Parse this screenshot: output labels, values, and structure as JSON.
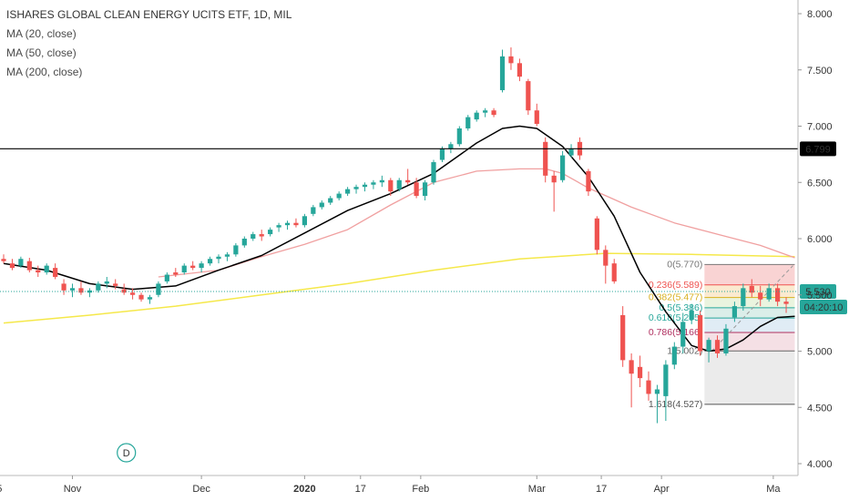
{
  "legend": {
    "title": "ISHARES GLOBAL CLEAN ENERGY UCITS ETF, 1D, MIL",
    "indicators": [
      "MA (20, close)",
      "MA (50, close)",
      "MA (200, close)"
    ]
  },
  "colors": {
    "up": "#26a69a",
    "down": "#ef5350",
    "ma20": "#000000",
    "ma50": "#f0a0a0",
    "ma200": "#f5e84a",
    "hline": "#000000",
    "last_price_line": "#26a69a",
    "last_price_badge": "#26a69a",
    "countdown_badge": "#26a69a",
    "hline_badge": "#000000",
    "dividend_marker": "#26a69a"
  },
  "chart_data": {
    "type": "candlestick",
    "y_axis": {
      "ylim": [
        3.95,
        8.05
      ],
      "ticks": [
        "8.000",
        "7.500",
        "7.000",
        "6.500",
        "6.000",
        "5.500",
        "5.000",
        "4.500",
        "4.000"
      ],
      "tick_values": [
        8.0,
        7.5,
        7.0,
        6.5,
        6.0,
        5.5,
        5.0,
        4.5,
        4.0
      ]
    },
    "x_axis": {
      "tick_labels": [
        "5",
        "Nov",
        "Dec",
        "2020",
        "17",
        "Feb",
        "Mar",
        "17",
        "Apr",
        "Ma"
      ],
      "tick_index": [
        -1,
        16,
        46,
        70,
        83,
        97,
        124,
        139,
        153,
        179
      ],
      "bold_labels": [
        "2020"
      ],
      "n_bars": 180
    },
    "candles": [
      [
        0,
        5.82,
        5.86,
        5.78,
        5.8
      ],
      [
        2,
        5.78,
        5.82,
        5.72,
        5.74
      ],
      [
        4,
        5.76,
        5.84,
        5.74,
        5.82
      ],
      [
        6,
        5.8,
        5.83,
        5.7,
        5.72
      ],
      [
        8,
        5.72,
        5.76,
        5.66,
        5.7
      ],
      [
        10,
        5.7,
        5.78,
        5.68,
        5.76
      ],
      [
        12,
        5.74,
        5.78,
        5.64,
        5.66
      ],
      [
        14,
        5.6,
        5.64,
        5.5,
        5.54
      ],
      [
        16,
        5.54,
        5.6,
        5.48,
        5.56
      ],
      [
        18,
        5.56,
        5.62,
        5.5,
        5.52
      ],
      [
        20,
        5.52,
        5.56,
        5.48,
        5.54
      ],
      [
        22,
        5.54,
        5.62,
        5.52,
        5.6
      ],
      [
        24,
        5.6,
        5.66,
        5.56,
        5.62
      ],
      [
        26,
        5.6,
        5.64,
        5.55,
        5.58
      ],
      [
        28,
        5.55,
        5.6,
        5.5,
        5.52
      ],
      [
        30,
        5.52,
        5.56,
        5.46,
        5.5
      ],
      [
        32,
        5.5,
        5.52,
        5.44,
        5.46
      ],
      [
        34,
        5.46,
        5.5,
        5.42,
        5.48
      ],
      [
        36,
        5.5,
        5.62,
        5.48,
        5.6
      ],
      [
        38,
        5.62,
        5.7,
        5.6,
        5.68
      ],
      [
        40,
        5.7,
        5.74,
        5.66,
        5.68
      ],
      [
        42,
        5.7,
        5.78,
        5.68,
        5.76
      ],
      [
        44,
        5.76,
        5.8,
        5.72,
        5.74
      ],
      [
        46,
        5.74,
        5.8,
        5.7,
        5.78
      ],
      [
        48,
        5.78,
        5.84,
        5.76,
        5.82
      ],
      [
        50,
        5.82,
        5.86,
        5.78,
        5.84
      ],
      [
        52,
        5.84,
        5.88,
        5.8,
        5.86
      ],
      [
        54,
        5.86,
        5.96,
        5.84,
        5.94
      ],
      [
        56,
        5.94,
        6.02,
        5.92,
        6.0
      ],
      [
        58,
        6.0,
        6.06,
        5.98,
        6.04
      ],
      [
        60,
        6.04,
        6.08,
        5.98,
        6.02
      ],
      [
        62,
        6.04,
        6.1,
        6.02,
        6.08
      ],
      [
        64,
        6.1,
        6.14,
        6.06,
        6.12
      ],
      [
        66,
        6.12,
        6.16,
        6.08,
        6.14
      ],
      [
        68,
        6.14,
        6.18,
        6.1,
        6.12
      ],
      [
        70,
        6.12,
        6.22,
        6.1,
        6.2
      ],
      [
        72,
        6.22,
        6.3,
        6.2,
        6.28
      ],
      [
        74,
        6.28,
        6.34,
        6.26,
        6.32
      ],
      [
        76,
        6.32,
        6.38,
        6.3,
        6.36
      ],
      [
        78,
        6.36,
        6.42,
        6.34,
        6.4
      ],
      [
        80,
        6.4,
        6.46,
        6.38,
        6.44
      ],
      [
        82,
        6.44,
        6.48,
        6.4,
        6.46
      ],
      [
        84,
        6.46,
        6.5,
        6.42,
        6.48
      ],
      [
        86,
        6.48,
        6.52,
        6.44,
        6.5
      ],
      [
        88,
        6.5,
        6.56,
        6.46,
        6.52
      ],
      [
        90,
        6.52,
        6.54,
        6.38,
        6.42
      ],
      [
        92,
        6.44,
        6.54,
        6.42,
        6.52
      ],
      [
        94,
        6.52,
        6.62,
        6.48,
        6.5
      ],
      [
        96,
        6.5,
        6.54,
        6.36,
        6.38
      ],
      [
        98,
        6.38,
        6.52,
        6.34,
        6.5
      ],
      [
        100,
        6.5,
        6.7,
        6.48,
        6.68
      ],
      [
        102,
        6.7,
        6.82,
        6.68,
        6.8
      ],
      [
        104,
        6.8,
        6.86,
        6.76,
        6.84
      ],
      [
        106,
        6.84,
        7.0,
        6.82,
        6.98
      ],
      [
        108,
        6.98,
        7.1,
        6.96,
        7.08
      ],
      [
        110,
        7.06,
        7.14,
        7.04,
        7.12
      ],
      [
        112,
        7.12,
        7.16,
        7.08,
        7.14
      ],
      [
        114,
        7.14,
        7.16,
        7.08,
        7.1
      ],
      [
        116,
        7.32,
        7.68,
        7.3,
        7.62
      ],
      [
        118,
        7.62,
        7.7,
        7.5,
        7.56
      ],
      [
        120,
        7.56,
        7.6,
        7.4,
        7.44
      ],
      [
        122,
        7.4,
        7.42,
        7.1,
        7.14
      ],
      [
        124,
        7.14,
        7.2,
        7.0,
        7.02
      ],
      [
        126,
        6.86,
        6.9,
        6.5,
        6.56
      ],
      [
        128,
        6.56,
        6.6,
        6.24,
        6.5
      ],
      [
        130,
        6.52,
        6.78,
        6.5,
        6.74
      ],
      [
        132,
        6.74,
        6.84,
        6.72,
        6.8
      ],
      [
        134,
        6.86,
        6.9,
        6.7,
        6.74
      ],
      [
        136,
        6.6,
        6.62,
        6.38,
        6.42
      ],
      [
        138,
        6.18,
        6.2,
        5.86,
        5.9
      ],
      [
        140,
        5.9,
        5.94,
        5.6,
        5.76
      ],
      [
        142,
        5.78,
        5.82,
        5.6,
        5.62
      ],
      [
        144,
        5.32,
        5.4,
        4.86,
        4.92
      ],
      [
        146,
        4.92,
        4.98,
        4.5,
        4.8
      ],
      [
        148,
        4.86,
        4.96,
        4.68,
        4.76
      ],
      [
        150,
        4.74,
        4.82,
        4.56,
        4.62
      ],
      [
        152,
        4.62,
        4.7,
        4.36,
        4.66
      ],
      [
        154,
        4.6,
        4.92,
        4.38,
        4.88
      ],
      [
        156,
        4.88,
        5.08,
        4.84,
        5.04
      ],
      [
        158,
        5.04,
        5.34,
        4.98,
        5.26
      ],
      [
        160,
        5.28,
        5.42,
        5.24,
        5.36
      ],
      [
        162,
        5.32,
        5.36,
        4.96,
        5.0
      ],
      [
        164,
        5.0,
        5.12,
        4.9,
        5.1
      ],
      [
        166,
        5.1,
        5.14,
        4.94,
        4.98
      ],
      [
        168,
        4.98,
        5.24,
        4.96,
        5.2
      ],
      [
        170,
        5.3,
        5.44,
        5.26,
        5.4
      ],
      [
        172,
        5.4,
        5.6,
        5.36,
        5.56
      ],
      [
        174,
        5.58,
        5.64,
        5.48,
        5.52
      ],
      [
        176,
        5.52,
        5.58,
        5.4,
        5.46
      ],
      [
        178,
        5.46,
        5.6,
        5.44,
        5.56
      ],
      [
        180,
        5.56,
        5.6,
        5.4,
        5.44
      ],
      [
        182,
        5.44,
        5.48,
        5.34,
        5.42
      ],
      [
        184,
        5.42,
        5.56,
        5.4,
        5.53
      ]
    ],
    "ma20": [
      [
        0,
        5.78
      ],
      [
        10,
        5.72
      ],
      [
        20,
        5.6
      ],
      [
        30,
        5.55
      ],
      [
        40,
        5.58
      ],
      [
        50,
        5.72
      ],
      [
        60,
        5.85
      ],
      [
        70,
        6.05
      ],
      [
        80,
        6.25
      ],
      [
        90,
        6.4
      ],
      [
        100,
        6.58
      ],
      [
        110,
        6.85
      ],
      [
        116,
        6.98
      ],
      [
        120,
        7.0
      ],
      [
        124,
        6.98
      ],
      [
        130,
        6.82
      ],
      [
        136,
        6.55
      ],
      [
        142,
        6.2
      ],
      [
        148,
        5.7
      ],
      [
        154,
        5.35
      ],
      [
        160,
        5.05
      ],
      [
        164,
        5.0
      ],
      [
        168,
        5.02
      ],
      [
        172,
        5.1
      ],
      [
        176,
        5.22
      ],
      [
        180,
        5.3
      ],
      [
        184,
        5.31
      ]
    ],
    "ma50": [
      [
        36,
        5.66
      ],
      [
        50,
        5.72
      ],
      [
        60,
        5.84
      ],
      [
        70,
        5.95
      ],
      [
        80,
        6.08
      ],
      [
        90,
        6.3
      ],
      [
        100,
        6.5
      ],
      [
        110,
        6.6
      ],
      [
        120,
        6.62
      ],
      [
        126,
        6.62
      ],
      [
        130,
        6.58
      ],
      [
        136,
        6.45
      ],
      [
        146,
        6.28
      ],
      [
        156,
        6.14
      ],
      [
        166,
        6.04
      ],
      [
        176,
        5.94
      ],
      [
        184,
        5.83
      ]
    ],
    "ma200": [
      [
        0,
        5.25
      ],
      [
        20,
        5.32
      ],
      [
        40,
        5.4
      ],
      [
        60,
        5.5
      ],
      [
        80,
        5.6
      ],
      [
        100,
        5.72
      ],
      [
        120,
        5.82
      ],
      [
        140,
        5.87
      ],
      [
        160,
        5.86
      ],
      [
        184,
        5.84
      ]
    ],
    "hline": {
      "value": 6.799,
      "label": "6.799"
    },
    "last_price": {
      "value": 5.53,
      "label": "5.530",
      "countdown": "04:20:10"
    },
    "fib_levels": [
      {
        "label": "0(5.770)",
        "value": 5.77
      },
      {
        "label": "0.236(5.589)",
        "value": 5.589
      },
      {
        "label": "0.382(5.477)",
        "value": 5.477
      },
      {
        "label": "0.5(5.386)",
        "value": 5.386
      },
      {
        "label": "0.618(5.295)",
        "value": 5.295
      },
      {
        "label": "0.786(5.166)",
        "value": 5.166
      },
      {
        "label": "1(5.002)",
        "value": 5.002
      },
      {
        "label": "1.618(4.527)",
        "value": 4.527
      }
    ],
    "dividend_marker": {
      "label": "D",
      "x_index": 26
    }
  }
}
